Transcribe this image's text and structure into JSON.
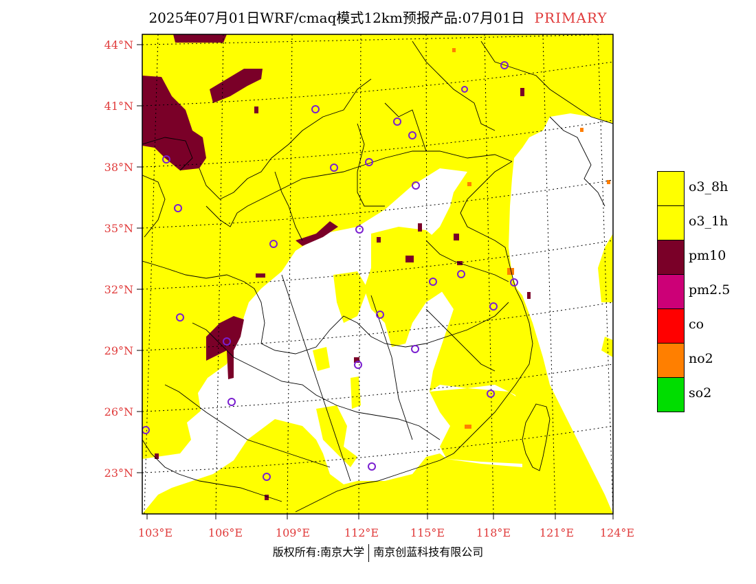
{
  "title": {
    "main": "2025年07月01日WRF/cmaq模式12km预报产品:07月01日",
    "tag": "PRIMARY"
  },
  "footer": {
    "left": "版权所有:南京大学",
    "right": "南京创蓝科技有限公司"
  },
  "axes": {
    "lat_labels": [
      "44°N",
      "41°N",
      "38°N",
      "35°N",
      "32°N",
      "29°N",
      "26°N",
      "23°N"
    ],
    "lon_labels": [
      "103°E",
      "106°E",
      "109°E",
      "112°E",
      "115°E",
      "118°E",
      "121°E",
      "124°E"
    ],
    "label_color": "#e03a3a"
  },
  "legend": [
    {
      "label": "o3_8h",
      "color": "#ffff00"
    },
    {
      "label": "o3_1h",
      "color": "#ffff00"
    },
    {
      "label": "pm10",
      "color": "#7a0028"
    },
    {
      "label": "pm2.5",
      "color": "#cc0077"
    },
    {
      "label": "co",
      "color": "#ff0000"
    },
    {
      "label": "no2",
      "color": "#ff7f00"
    },
    {
      "label": "so2",
      "color": "#00dd00"
    }
  ],
  "colors": {
    "o3": "#ffff00",
    "pm10": "#7a0028",
    "no2": "#ff7f00",
    "station": "#7a1fd0"
  }
}
